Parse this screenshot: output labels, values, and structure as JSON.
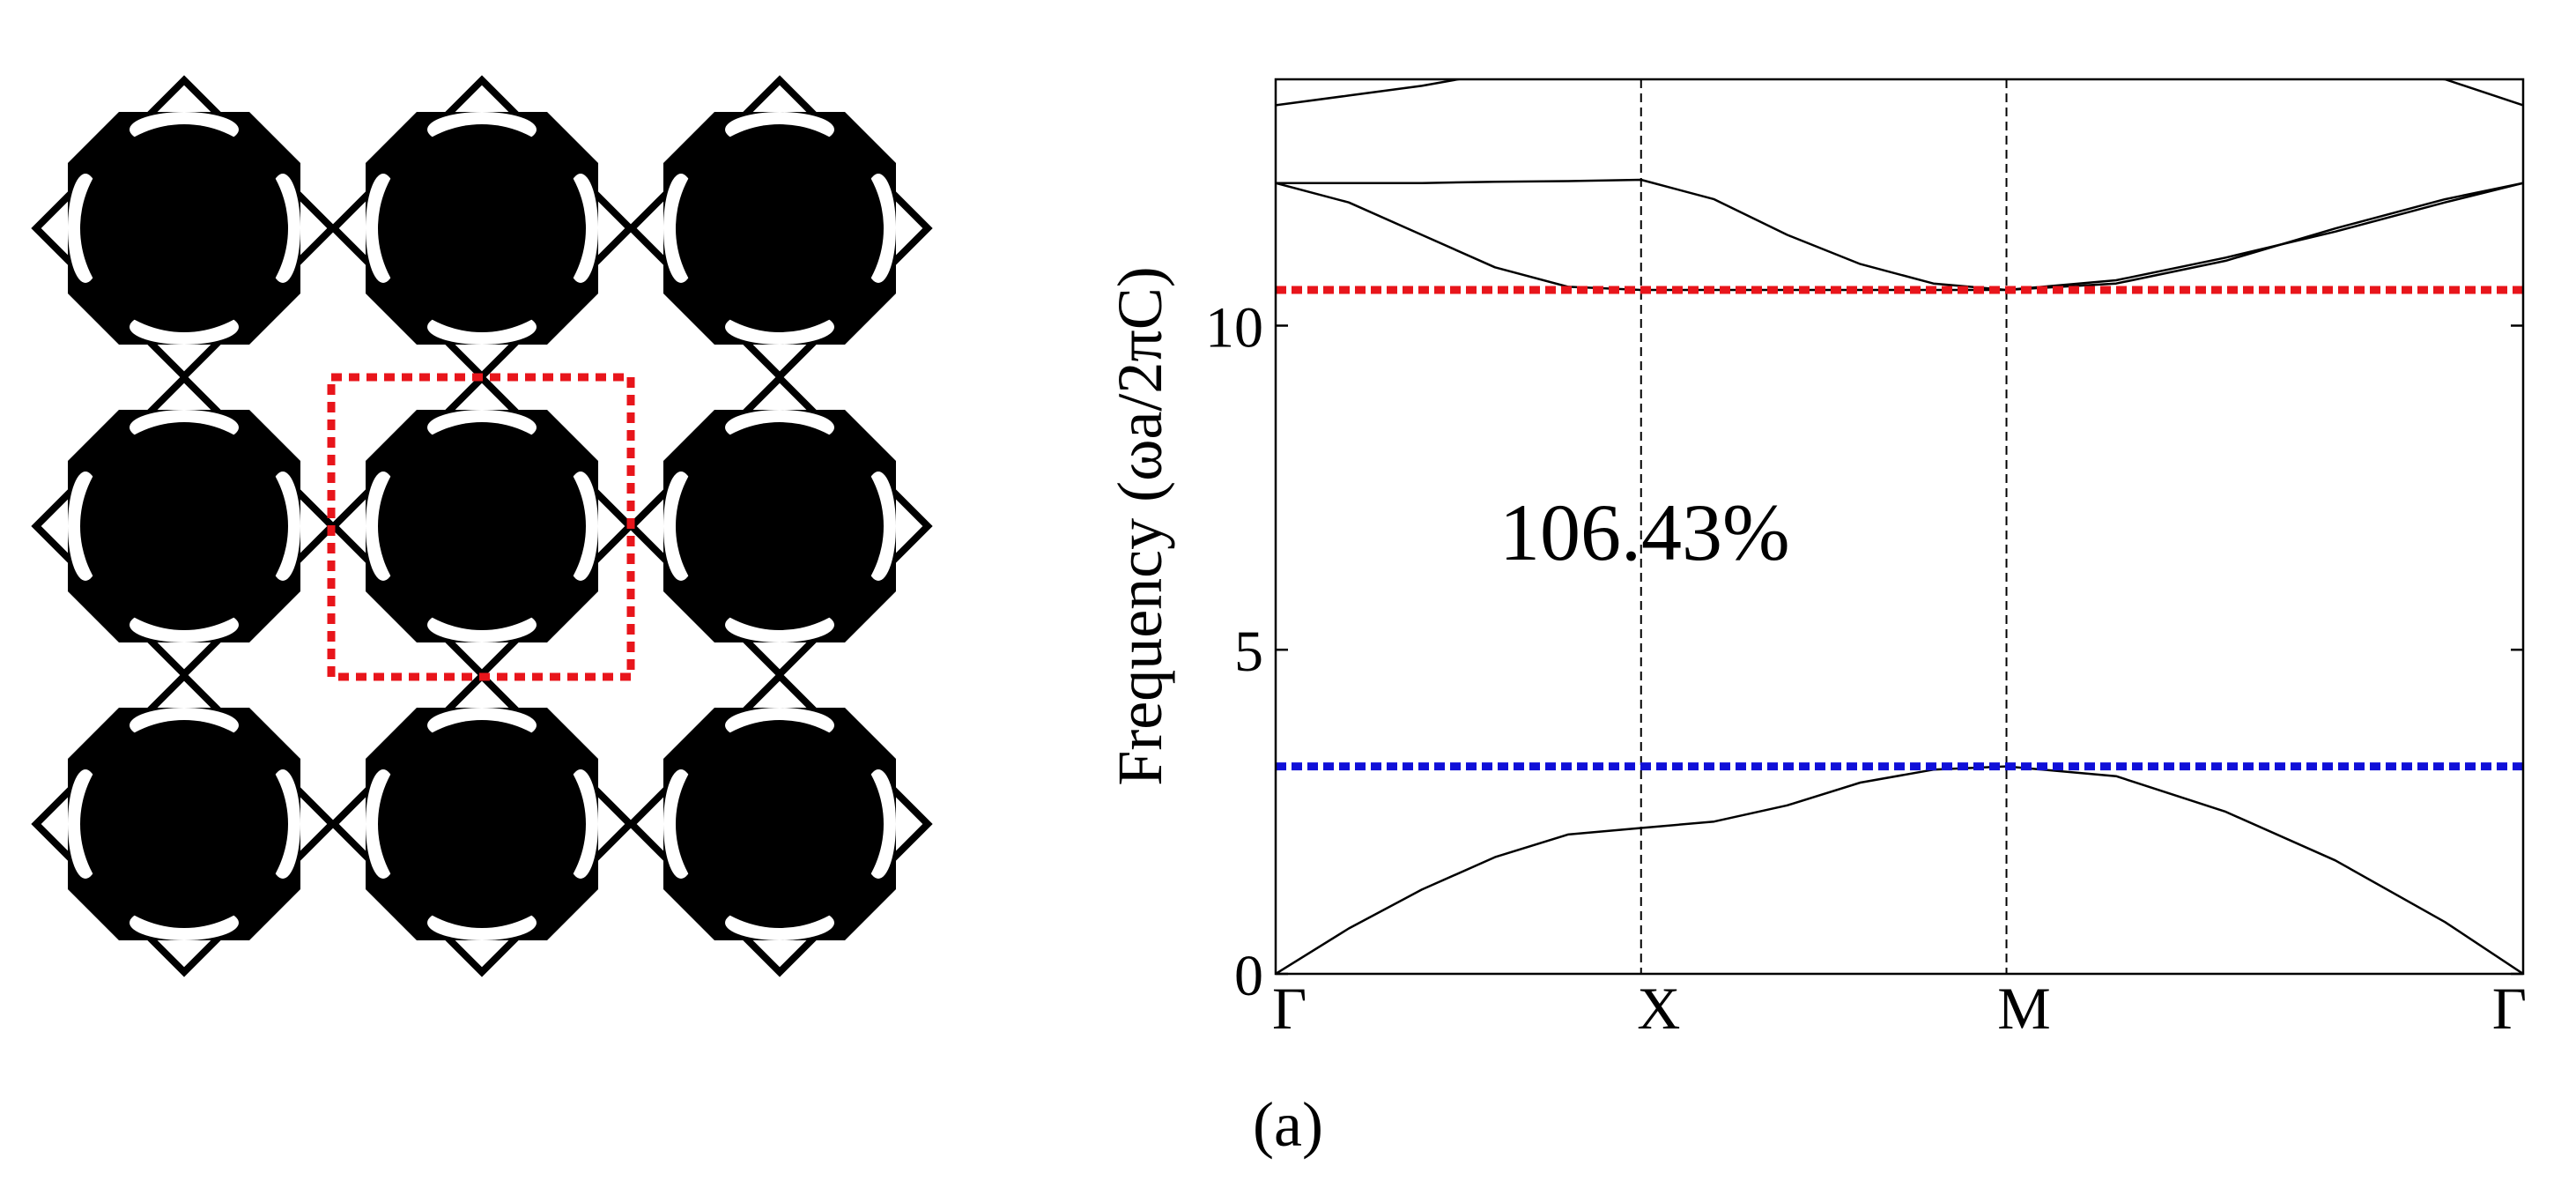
{
  "figure": {
    "panel_label": "(a)"
  },
  "lattice": {
    "rows": 3,
    "cols": 3,
    "highlight": {
      "row": 1,
      "col": 1,
      "color": "#e8151b"
    }
  },
  "chart_data": {
    "type": "line",
    "ylabel": "Frequency (ωa/2πC)",
    "ylim": [
      0,
      13.8
    ],
    "yticks": [
      0,
      5,
      10
    ],
    "x_points": [
      "Γ",
      "X",
      "M",
      "Γ"
    ],
    "x_positions": [
      0,
      1,
      2,
      3.414
    ],
    "grid": false,
    "bands": [
      {
        "name": "",
        "x": [
          0,
          0.2,
          0.4,
          0.6,
          0.8,
          1.0,
          1.2,
          1.4,
          1.6,
          1.8,
          2.0,
          2.3,
          2.6,
          2.9,
          3.2,
          3.414
        ],
        "y": [
          0,
          0.7,
          1.3,
          1.8,
          2.15,
          2.25,
          2.35,
          2.6,
          2.95,
          3.15,
          3.2,
          3.05,
          2.5,
          1.75,
          0.8,
          0
        ]
      },
      {
        "name": "",
        "x": [
          0,
          0.2,
          0.4,
          0.6,
          0.8,
          1.0,
          1.2,
          1.4,
          1.6,
          1.8,
          2.0,
          2.3,
          2.6,
          2.9,
          3.2,
          3.414
        ],
        "y": [
          12.2,
          11.9,
          11.4,
          10.9,
          10.6,
          10.55,
          10.55,
          10.55,
          10.55,
          10.55,
          10.55,
          10.65,
          11.0,
          11.5,
          11.95,
          12.2
        ]
      },
      {
        "name": "",
        "x": [
          0,
          0.2,
          0.4,
          0.6,
          0.8,
          1.0,
          1.2,
          1.4,
          1.6,
          1.8,
          2.0,
          2.3,
          2.6,
          2.9,
          3.2,
          3.414
        ],
        "y": [
          12.2,
          12.2,
          12.2,
          12.22,
          12.23,
          12.25,
          11.95,
          11.4,
          10.95,
          10.65,
          10.55,
          10.7,
          11.05,
          11.45,
          11.9,
          12.2
        ]
      },
      {
        "name": "",
        "x": [
          0,
          0.2,
          0.4,
          0.6,
          0.8,
          1.0,
          2.6,
          2.9,
          3.2,
          3.414
        ],
        "y": [
          13.4,
          13.55,
          13.7,
          13.9,
          14.1,
          14.3,
          14.3,
          14.0,
          13.8,
          13.4
        ]
      }
    ],
    "bandgap": {
      "lower_edge": 3.2,
      "upper_edge": 10.55,
      "lower_color": "#1010d8",
      "upper_color": "#e8151b",
      "annotation": "106.43%",
      "annotation_x": 1.0,
      "annotation_y": 6.8
    }
  }
}
